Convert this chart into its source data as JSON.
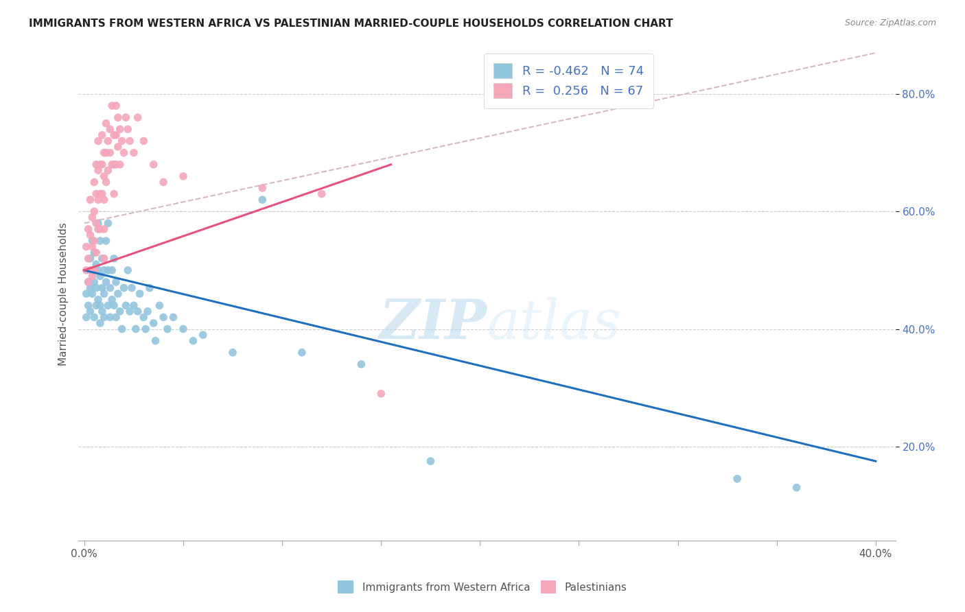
{
  "title": "IMMIGRANTS FROM WESTERN AFRICA VS PALESTINIAN MARRIED-COUPLE HOUSEHOLDS CORRELATION CHART",
  "source": "Source: ZipAtlas.com",
  "xlabel_ticks": [
    "0.0%",
    "",
    "",
    "",
    "40.0%"
  ],
  "xlabel_values": [
    0.0,
    0.1,
    0.2,
    0.3,
    0.4
  ],
  "ylabel_ticks": [
    "20.0%",
    "40.0%",
    "60.0%",
    "80.0%"
  ],
  "ylabel_values": [
    0.2,
    0.4,
    0.6,
    0.8
  ],
  "xlim": [
    -0.003,
    0.41
  ],
  "ylim": [
    0.04,
    0.88
  ],
  "ylabel": "Married-couple Households",
  "legend_label1": "Immigrants from Western Africa",
  "legend_label2": "Palestinians",
  "R1": -0.462,
  "N1": 74,
  "R2": 0.256,
  "N2": 67,
  "color_blue": "#92c5de",
  "color_pink": "#f4a7b9",
  "line_blue": "#1f6fbf",
  "line_pink": "#e8527a",
  "line_dashed_color": "#d4b8c8",
  "watermark": "ZIPatlas",
  "blue_scatter_x": [
    0.001,
    0.001,
    0.002,
    0.002,
    0.003,
    0.003,
    0.003,
    0.004,
    0.004,
    0.004,
    0.005,
    0.005,
    0.005,
    0.006,
    0.006,
    0.006,
    0.007,
    0.007,
    0.007,
    0.008,
    0.008,
    0.008,
    0.008,
    0.009,
    0.009,
    0.009,
    0.01,
    0.01,
    0.01,
    0.011,
    0.011,
    0.012,
    0.012,
    0.012,
    0.013,
    0.013,
    0.014,
    0.014,
    0.015,
    0.015,
    0.016,
    0.016,
    0.017,
    0.018,
    0.019,
    0.02,
    0.021,
    0.022,
    0.023,
    0.024,
    0.025,
    0.026,
    0.027,
    0.028,
    0.03,
    0.031,
    0.032,
    0.033,
    0.035,
    0.036,
    0.038,
    0.04,
    0.042,
    0.045,
    0.05,
    0.055,
    0.06,
    0.075,
    0.09,
    0.11,
    0.14,
    0.175,
    0.33,
    0.36
  ],
  "blue_scatter_y": [
    0.46,
    0.42,
    0.48,
    0.44,
    0.52,
    0.47,
    0.43,
    0.5,
    0.55,
    0.46,
    0.53,
    0.48,
    0.42,
    0.51,
    0.47,
    0.44,
    0.58,
    0.5,
    0.45,
    0.55,
    0.49,
    0.44,
    0.41,
    0.52,
    0.47,
    0.43,
    0.5,
    0.46,
    0.42,
    0.55,
    0.48,
    0.58,
    0.5,
    0.44,
    0.47,
    0.42,
    0.5,
    0.45,
    0.52,
    0.44,
    0.48,
    0.42,
    0.46,
    0.43,
    0.4,
    0.47,
    0.44,
    0.5,
    0.43,
    0.47,
    0.44,
    0.4,
    0.43,
    0.46,
    0.42,
    0.4,
    0.43,
    0.47,
    0.41,
    0.38,
    0.44,
    0.42,
    0.4,
    0.42,
    0.4,
    0.38,
    0.39,
    0.36,
    0.62,
    0.36,
    0.34,
    0.175,
    0.145,
    0.13
  ],
  "pink_scatter_x": [
    0.001,
    0.001,
    0.002,
    0.002,
    0.002,
    0.003,
    0.003,
    0.003,
    0.004,
    0.004,
    0.004,
    0.005,
    0.005,
    0.005,
    0.005,
    0.006,
    0.006,
    0.006,
    0.006,
    0.007,
    0.007,
    0.007,
    0.007,
    0.008,
    0.008,
    0.008,
    0.009,
    0.009,
    0.009,
    0.01,
    0.01,
    0.01,
    0.01,
    0.01,
    0.011,
    0.011,
    0.011,
    0.012,
    0.012,
    0.013,
    0.013,
    0.014,
    0.014,
    0.015,
    0.015,
    0.015,
    0.016,
    0.016,
    0.016,
    0.017,
    0.017,
    0.018,
    0.018,
    0.019,
    0.02,
    0.021,
    0.022,
    0.023,
    0.025,
    0.027,
    0.03,
    0.035,
    0.04,
    0.05,
    0.09,
    0.12,
    0.15
  ],
  "pink_scatter_y": [
    0.54,
    0.5,
    0.57,
    0.52,
    0.48,
    0.62,
    0.56,
    0.5,
    0.59,
    0.54,
    0.49,
    0.65,
    0.6,
    0.55,
    0.5,
    0.68,
    0.63,
    0.58,
    0.53,
    0.72,
    0.67,
    0.62,
    0.57,
    0.68,
    0.63,
    0.57,
    0.73,
    0.68,
    0.63,
    0.7,
    0.66,
    0.62,
    0.57,
    0.52,
    0.75,
    0.7,
    0.65,
    0.72,
    0.67,
    0.74,
    0.7,
    0.78,
    0.68,
    0.73,
    0.68,
    0.63,
    0.78,
    0.73,
    0.68,
    0.76,
    0.71,
    0.74,
    0.68,
    0.72,
    0.7,
    0.76,
    0.74,
    0.72,
    0.7,
    0.76,
    0.72,
    0.68,
    0.65,
    0.66,
    0.64,
    0.63,
    0.29
  ]
}
